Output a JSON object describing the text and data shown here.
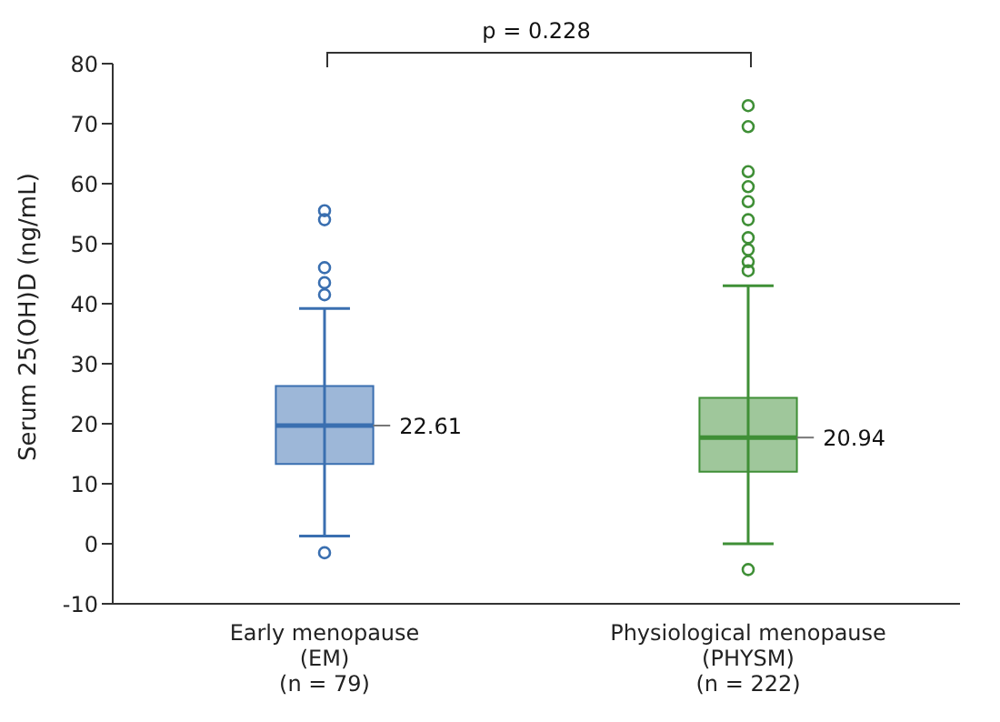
{
  "chart_data": {
    "type": "box",
    "ylabel": "Serum 25(OH)D (ng/mL)",
    "categories": [
      "Early menopause\n(EM)\n(n = 79)",
      "Physiological menopause\n(PHYSM)\n(n = 222)"
    ],
    "colors": [
      "#3a6fb0",
      "#3f8f36"
    ],
    "boxes": [
      {
        "low": 1.3,
        "q1": 13.3,
        "median": 19.7,
        "q3": 26.3,
        "high": 39.2,
        "outliers": [
          -1.5,
          41.5,
          43.5,
          46,
          54,
          55.5
        ]
      },
      {
        "low": 0,
        "q1": 12,
        "median": 17.7,
        "q3": 24.3,
        "high": 43,
        "outliers": [
          -4.3,
          45.5,
          47,
          49,
          51,
          54,
          57,
          59.5,
          62,
          69.5,
          73
        ]
      }
    ],
    "ylim": [
      -10,
      80
    ],
    "yticks": [
      -10,
      0,
      10,
      20,
      30,
      40,
      50,
      60,
      70,
      80
    ],
    "annotations": [
      "p = 0.228",
      "22.61",
      "20.94"
    ]
  }
}
